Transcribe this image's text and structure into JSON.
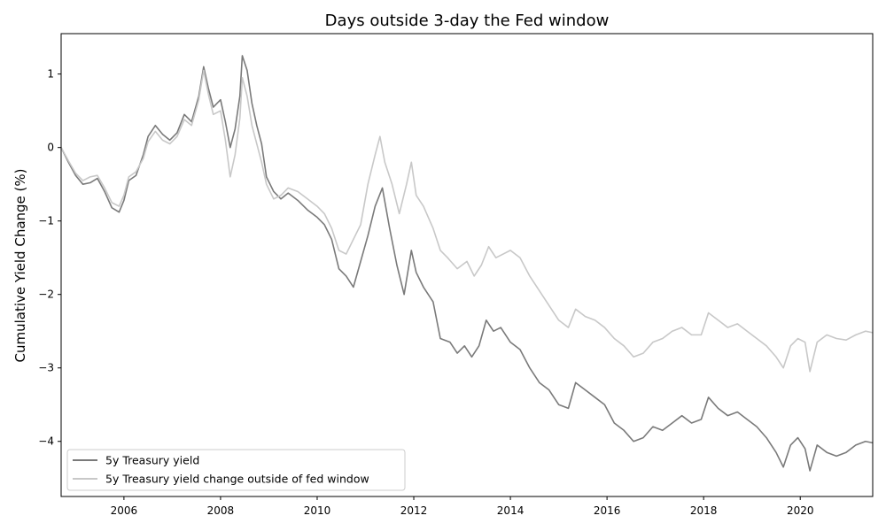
{
  "chart_data": {
    "type": "line",
    "title": "Days outside 3-day the Fed window",
    "xlabel": "",
    "ylabel": "Cumulative Yield Change (%)",
    "xlim": [
      2004.7,
      2021.5
    ],
    "ylim": [
      -4.75,
      1.55
    ],
    "x_ticks": [
      2006,
      2008,
      2010,
      2012,
      2014,
      2016,
      2018,
      2020
    ],
    "x_tick_labels": [
      "2006",
      "2008",
      "2010",
      "2012",
      "2014",
      "2016",
      "2018",
      "2020"
    ],
    "y_ticks": [
      1,
      0,
      -1,
      -2,
      -3,
      -4
    ],
    "y_tick_labels": [
      "1",
      "0",
      "−1",
      "−2",
      "−3",
      "−4"
    ],
    "grid": false,
    "legend_position": "lower-left",
    "series": [
      {
        "name": "5y Treasury yield",
        "color": "#7a7a7a",
        "points": [
          [
            2004.7,
            0.0
          ],
          [
            2004.85,
            -0.2
          ],
          [
            2005.0,
            -0.38
          ],
          [
            2005.15,
            -0.5
          ],
          [
            2005.3,
            -0.48
          ],
          [
            2005.45,
            -0.42
          ],
          [
            2005.6,
            -0.6
          ],
          [
            2005.75,
            -0.82
          ],
          [
            2005.9,
            -0.88
          ],
          [
            2006.0,
            -0.72
          ],
          [
            2006.1,
            -0.45
          ],
          [
            2006.25,
            -0.38
          ],
          [
            2006.4,
            -0.1
          ],
          [
            2006.5,
            0.15
          ],
          [
            2006.65,
            0.3
          ],
          [
            2006.8,
            0.18
          ],
          [
            2006.95,
            0.1
          ],
          [
            2007.1,
            0.2
          ],
          [
            2007.25,
            0.45
          ],
          [
            2007.4,
            0.35
          ],
          [
            2007.55,
            0.7
          ],
          [
            2007.65,
            1.1
          ],
          [
            2007.75,
            0.8
          ],
          [
            2007.85,
            0.55
          ],
          [
            2008.0,
            0.65
          ],
          [
            2008.1,
            0.35
          ],
          [
            2008.2,
            0.0
          ],
          [
            2008.3,
            0.25
          ],
          [
            2008.4,
            0.7
          ],
          [
            2008.45,
            1.25
          ],
          [
            2008.55,
            1.05
          ],
          [
            2008.65,
            0.6
          ],
          [
            2008.75,
            0.3
          ],
          [
            2008.85,
            0.05
          ],
          [
            2008.95,
            -0.4
          ],
          [
            2009.1,
            -0.6
          ],
          [
            2009.25,
            -0.7
          ],
          [
            2009.4,
            -0.62
          ],
          [
            2009.6,
            -0.72
          ],
          [
            2009.8,
            -0.85
          ],
          [
            2010.0,
            -0.95
          ],
          [
            2010.15,
            -1.05
          ],
          [
            2010.3,
            -1.25
          ],
          [
            2010.45,
            -1.65
          ],
          [
            2010.6,
            -1.75
          ],
          [
            2010.75,
            -1.9
          ],
          [
            2010.9,
            -1.55
          ],
          [
            2011.05,
            -1.2
          ],
          [
            2011.2,
            -0.8
          ],
          [
            2011.35,
            -0.55
          ],
          [
            2011.5,
            -1.1
          ],
          [
            2011.65,
            -1.6
          ],
          [
            2011.8,
            -2.0
          ],
          [
            2011.95,
            -1.4
          ],
          [
            2012.05,
            -1.7
          ],
          [
            2012.2,
            -1.9
          ],
          [
            2012.4,
            -2.1
          ],
          [
            2012.55,
            -2.6
          ],
          [
            2012.75,
            -2.65
          ],
          [
            2012.9,
            -2.8
          ],
          [
            2013.05,
            -2.7
          ],
          [
            2013.2,
            -2.85
          ],
          [
            2013.35,
            -2.7
          ],
          [
            2013.5,
            -2.35
          ],
          [
            2013.65,
            -2.5
          ],
          [
            2013.8,
            -2.45
          ],
          [
            2014.0,
            -2.65
          ],
          [
            2014.2,
            -2.75
          ],
          [
            2014.4,
            -3.0
          ],
          [
            2014.6,
            -3.2
          ],
          [
            2014.8,
            -3.3
          ],
          [
            2015.0,
            -3.5
          ],
          [
            2015.2,
            -3.55
          ],
          [
            2015.35,
            -3.2
          ],
          [
            2015.55,
            -3.3
          ],
          [
            2015.75,
            -3.4
          ],
          [
            2015.95,
            -3.5
          ],
          [
            2016.15,
            -3.75
          ],
          [
            2016.35,
            -3.85
          ],
          [
            2016.55,
            -4.0
          ],
          [
            2016.75,
            -3.95
          ],
          [
            2016.95,
            -3.8
          ],
          [
            2017.15,
            -3.85
          ],
          [
            2017.35,
            -3.75
          ],
          [
            2017.55,
            -3.65
          ],
          [
            2017.75,
            -3.75
          ],
          [
            2017.95,
            -3.7
          ],
          [
            2018.1,
            -3.4
          ],
          [
            2018.3,
            -3.55
          ],
          [
            2018.5,
            -3.65
          ],
          [
            2018.7,
            -3.6
          ],
          [
            2018.9,
            -3.7
          ],
          [
            2019.1,
            -3.8
          ],
          [
            2019.3,
            -3.95
          ],
          [
            2019.5,
            -4.15
          ],
          [
            2019.65,
            -4.35
          ],
          [
            2019.8,
            -4.05
          ],
          [
            2019.95,
            -3.95
          ],
          [
            2020.1,
            -4.1
          ],
          [
            2020.2,
            -4.4
          ],
          [
            2020.35,
            -4.05
          ],
          [
            2020.55,
            -4.15
          ],
          [
            2020.75,
            -4.2
          ],
          [
            2020.95,
            -4.15
          ],
          [
            2021.15,
            -4.05
          ],
          [
            2021.35,
            -4.0
          ],
          [
            2021.5,
            -4.02
          ]
        ]
      },
      {
        "name": "5y Treasury yield change outside of fed window",
        "color": "#c8c8c8",
        "points": [
          [
            2004.7,
            0.0
          ],
          [
            2004.85,
            -0.18
          ],
          [
            2005.0,
            -0.35
          ],
          [
            2005.15,
            -0.45
          ],
          [
            2005.3,
            -0.4
          ],
          [
            2005.45,
            -0.38
          ],
          [
            2005.6,
            -0.55
          ],
          [
            2005.75,
            -0.75
          ],
          [
            2005.9,
            -0.8
          ],
          [
            2006.0,
            -0.65
          ],
          [
            2006.1,
            -0.4
          ],
          [
            2006.25,
            -0.33
          ],
          [
            2006.4,
            -0.15
          ],
          [
            2006.5,
            0.08
          ],
          [
            2006.65,
            0.22
          ],
          [
            2006.8,
            0.1
          ],
          [
            2006.95,
            0.05
          ],
          [
            2007.1,
            0.15
          ],
          [
            2007.25,
            0.38
          ],
          [
            2007.4,
            0.3
          ],
          [
            2007.55,
            0.65
          ],
          [
            2007.65,
            1.05
          ],
          [
            2007.75,
            0.72
          ],
          [
            2007.85,
            0.45
          ],
          [
            2008.0,
            0.5
          ],
          [
            2008.1,
            0.1
          ],
          [
            2008.2,
            -0.4
          ],
          [
            2008.3,
            -0.1
          ],
          [
            2008.4,
            0.4
          ],
          [
            2008.45,
            0.95
          ],
          [
            2008.55,
            0.7
          ],
          [
            2008.65,
            0.3
          ],
          [
            2008.75,
            0.05
          ],
          [
            2008.85,
            -0.2
          ],
          [
            2008.95,
            -0.5
          ],
          [
            2009.1,
            -0.7
          ],
          [
            2009.25,
            -0.65
          ],
          [
            2009.4,
            -0.55
          ],
          [
            2009.6,
            -0.6
          ],
          [
            2009.8,
            -0.7
          ],
          [
            2010.0,
            -0.8
          ],
          [
            2010.15,
            -0.9
          ],
          [
            2010.3,
            -1.1
          ],
          [
            2010.45,
            -1.4
          ],
          [
            2010.6,
            -1.45
          ],
          [
            2010.75,
            -1.25
          ],
          [
            2010.9,
            -1.05
          ],
          [
            2011.05,
            -0.5
          ],
          [
            2011.2,
            -0.1
          ],
          [
            2011.3,
            0.15
          ],
          [
            2011.4,
            -0.2
          ],
          [
            2011.55,
            -0.5
          ],
          [
            2011.7,
            -0.9
          ],
          [
            2011.85,
            -0.5
          ],
          [
            2011.95,
            -0.2
          ],
          [
            2012.05,
            -0.65
          ],
          [
            2012.2,
            -0.8
          ],
          [
            2012.4,
            -1.1
          ],
          [
            2012.55,
            -1.4
          ],
          [
            2012.7,
            -1.5
          ],
          [
            2012.9,
            -1.65
          ],
          [
            2013.1,
            -1.55
          ],
          [
            2013.25,
            -1.75
          ],
          [
            2013.4,
            -1.6
          ],
          [
            2013.55,
            -1.35
          ],
          [
            2013.7,
            -1.5
          ],
          [
            2013.85,
            -1.45
          ],
          [
            2014.0,
            -1.4
          ],
          [
            2014.2,
            -1.5
          ],
          [
            2014.4,
            -1.75
          ],
          [
            2014.6,
            -1.95
          ],
          [
            2014.8,
            -2.15
          ],
          [
            2015.0,
            -2.35
          ],
          [
            2015.2,
            -2.45
          ],
          [
            2015.35,
            -2.2
          ],
          [
            2015.55,
            -2.3
          ],
          [
            2015.75,
            -2.35
          ],
          [
            2015.95,
            -2.45
          ],
          [
            2016.15,
            -2.6
          ],
          [
            2016.35,
            -2.7
          ],
          [
            2016.55,
            -2.85
          ],
          [
            2016.75,
            -2.8
          ],
          [
            2016.95,
            -2.65
          ],
          [
            2017.15,
            -2.6
          ],
          [
            2017.35,
            -2.5
          ],
          [
            2017.55,
            -2.45
          ],
          [
            2017.75,
            -2.55
          ],
          [
            2017.95,
            -2.55
          ],
          [
            2018.1,
            -2.25
          ],
          [
            2018.3,
            -2.35
          ],
          [
            2018.5,
            -2.45
          ],
          [
            2018.7,
            -2.4
          ],
          [
            2018.9,
            -2.5
          ],
          [
            2019.1,
            -2.6
          ],
          [
            2019.3,
            -2.7
          ],
          [
            2019.5,
            -2.85
          ],
          [
            2019.65,
            -3.0
          ],
          [
            2019.8,
            -2.7
          ],
          [
            2019.95,
            -2.6
          ],
          [
            2020.1,
            -2.65
          ],
          [
            2020.2,
            -3.05
          ],
          [
            2020.35,
            -2.65
          ],
          [
            2020.55,
            -2.55
          ],
          [
            2020.75,
            -2.6
          ],
          [
            2020.95,
            -2.62
          ],
          [
            2021.15,
            -2.55
          ],
          [
            2021.35,
            -2.5
          ],
          [
            2021.5,
            -2.52
          ]
        ]
      }
    ]
  }
}
